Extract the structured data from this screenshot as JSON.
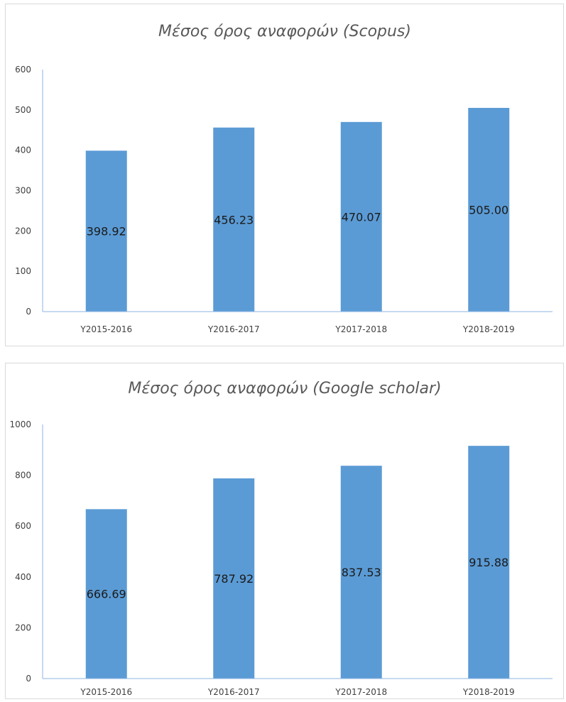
{
  "colors": {
    "bar": "#5b9bd5",
    "axis": "#8eb4e3",
    "text": "#404040"
  },
  "chart_data": [
    {
      "type": "bar",
      "title": "Μέσος όρος αναφορών (Scopus)",
      "categories": [
        "Y2015-2016",
        "Y2016-2017",
        "Y2017-2018",
        "Y2018-2019"
      ],
      "values": [
        398.92,
        456.23,
        470.07,
        505.0
      ],
      "data_labels": [
        "398.92",
        "456.23",
        "470.07",
        "505.00"
      ],
      "yticks": [
        0,
        100,
        200,
        300,
        400,
        500,
        600
      ],
      "ylim": [
        0,
        600
      ],
      "grid": false,
      "legend": "none"
    },
    {
      "type": "bar",
      "title": "Μέσος όρος αναφορών (Google scholar)",
      "categories": [
        "Y2015-2016",
        "Y2016-2017",
        "Y2017-2018",
        "Y2018-2019"
      ],
      "values": [
        666.69,
        787.92,
        837.53,
        915.88
      ],
      "data_labels": [
        "666.69",
        "787.92",
        "837.53",
        "915.88"
      ],
      "yticks": [
        0,
        200,
        400,
        600,
        800,
        1000
      ],
      "ylim": [
        0,
        1000
      ],
      "grid": false,
      "legend": "none"
    }
  ]
}
